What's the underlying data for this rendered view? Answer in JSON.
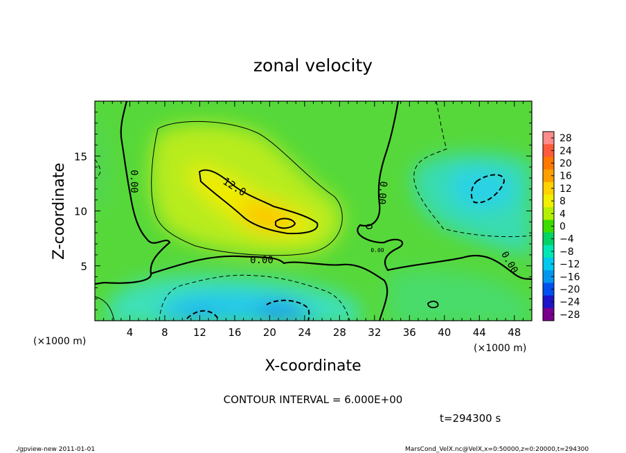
{
  "chart_data": {
    "type": "heatmap",
    "title": "zonal velocity",
    "xlabel": "X-coordinate",
    "ylabel": "Z-coordinate",
    "x_unit": "(×1000 m)",
    "y_unit": "(×1000 m)",
    "xlim": [
      0,
      50
    ],
    "ylim": [
      0,
      20
    ],
    "x_ticks": [
      4,
      8,
      12,
      16,
      20,
      24,
      28,
      32,
      36,
      40,
      44,
      48
    ],
    "y_ticks": [
      5,
      10,
      15
    ],
    "contour_interval_text": "CONTOUR INTERVAL = 6.000E+00",
    "contour_labels": [
      "0.00",
      "12.0",
      "0.00",
      "0.00",
      "0.00",
      "0.00"
    ],
    "colorbar": {
      "levels": [
        28,
        24,
        20,
        16,
        12,
        8,
        4,
        0,
        -4,
        -8,
        -12,
        -16,
        -20,
        -24,
        -28
      ],
      "colors": [
        "#ff8c8c",
        "#ff5a3c",
        "#ff7800",
        "#ffa000",
        "#ffd200",
        "#f0f000",
        "#b4f000",
        "#3cdc00",
        "#00d264",
        "#00e6b4",
        "#00c8f0",
        "#0096f0",
        "#0050f0",
        "#1e14c8",
        "#78008c"
      ]
    },
    "time_text": "t=294300 s",
    "footer_left": "./gpview-new  2011-01-01",
    "footer_right": "MarsCond_VelX.nc@VelX,x=0:50000,z=0:20000,t=294300"
  }
}
